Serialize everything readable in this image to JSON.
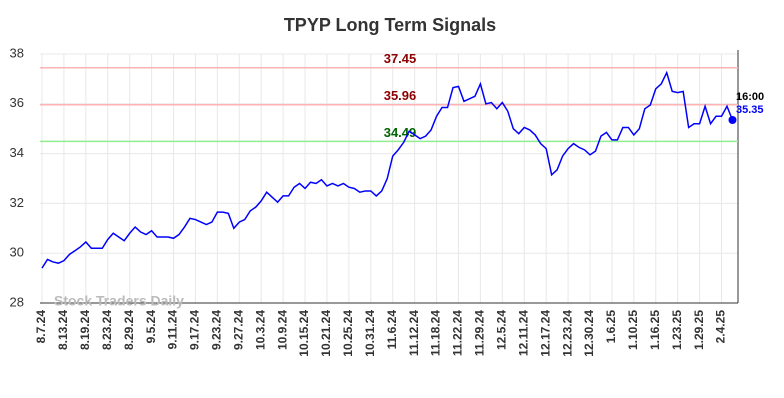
{
  "chart_data": {
    "type": "line",
    "title": "TPYP Long Term Signals",
    "categories": [
      "8.7.24",
      null,
      null,
      null,
      "8.13.24",
      null,
      null,
      null,
      "8.19.24",
      null,
      null,
      null,
      "8.23.24",
      null,
      null,
      null,
      "8.29.24",
      null,
      null,
      null,
      "9.5.24",
      null,
      null,
      null,
      "9.11.24",
      null,
      null,
      null,
      "9.17.24",
      null,
      null,
      null,
      "9.23.24",
      null,
      null,
      null,
      "9.27.24",
      null,
      null,
      null,
      "10.3.24",
      null,
      null,
      null,
      "10.9.24",
      null,
      null,
      null,
      "10.15.24",
      null,
      null,
      null,
      "10.21.24",
      null,
      null,
      null,
      "10.25.24",
      null,
      null,
      null,
      "10.31.24",
      null,
      null,
      null,
      "11.6.24",
      null,
      null,
      null,
      "11.12.24",
      null,
      null,
      null,
      "11.18.24",
      null,
      null,
      null,
      "11.22.24",
      null,
      null,
      null,
      "11.29.24",
      null,
      null,
      null,
      "12.5.24",
      null,
      null,
      null,
      "12.11.24",
      null,
      null,
      null,
      "12.17.24",
      null,
      null,
      null,
      "12.23.24",
      null,
      null,
      null,
      "12.30.24",
      null,
      null,
      null,
      "1.6.25",
      null,
      null,
      null,
      "1.10.25",
      null,
      null,
      null,
      "1.16.25",
      null,
      null,
      null,
      "1.23.25",
      null,
      null,
      null,
      "1.29.25",
      null,
      null,
      null,
      "2.4.25",
      null,
      null
    ],
    "values": [
      29.4,
      29.75,
      29.65,
      29.6,
      29.7,
      29.95,
      30.1,
      30.25,
      30.45,
      30.2,
      30.2,
      30.2,
      30.55,
      30.8,
      30.65,
      30.5,
      30.8,
      31.05,
      30.85,
      30.75,
      30.9,
      30.65,
      30.65,
      30.65,
      30.6,
      30.75,
      31.05,
      31.4,
      31.35,
      31.25,
      31.15,
      31.25,
      31.65,
      31.65,
      31.6,
      31.0,
      31.25,
      31.35,
      31.7,
      31.85,
      32.1,
      32.45,
      32.25,
      32.05,
      32.3,
      32.3,
      32.65,
      32.8,
      32.6,
      32.85,
      32.8,
      32.95,
      32.7,
      32.8,
      32.7,
      32.8,
      32.65,
      32.6,
      32.45,
      32.5,
      32.5,
      32.3,
      32.5,
      33.0,
      33.9,
      34.15,
      34.45,
      34.9,
      34.75,
      34.6,
      34.7,
      34.95,
      35.5,
      35.85,
      35.85,
      36.65,
      36.7,
      36.1,
      36.2,
      36.3,
      36.8,
      36.0,
      36.05,
      35.8,
      36.05,
      35.7,
      35.0,
      34.8,
      35.05,
      34.95,
      34.75,
      34.4,
      34.2,
      33.15,
      33.35,
      33.9,
      34.2,
      34.4,
      34.25,
      34.15,
      33.95,
      34.1,
      34.7,
      34.85,
      34.55,
      34.55,
      35.05,
      35.05,
      34.75,
      35.0,
      35.8,
      35.95,
      36.6,
      36.8,
      37.25,
      36.5,
      36.45,
      36.5,
      35.05,
      35.2,
      35.2,
      35.9,
      35.2,
      35.5,
      35.5,
      35.9,
      35.35
    ],
    "color": "#0000ff",
    "ylim": [
      28,
      38
    ],
    "yticks": [
      28,
      30,
      32,
      34,
      36,
      38
    ],
    "grid": true,
    "hlines": [
      {
        "value": 37.45,
        "color": "#ffb3b3",
        "label_color": "#8b0000"
      },
      {
        "value": 35.96,
        "color": "#ffb3b3",
        "label_color": "#8b0000"
      },
      {
        "value": 34.49,
        "color": "#90ee90",
        "label_color": "#006400"
      }
    ],
    "last_label": "16:00",
    "watermark": "Stock Traders Daily"
  }
}
